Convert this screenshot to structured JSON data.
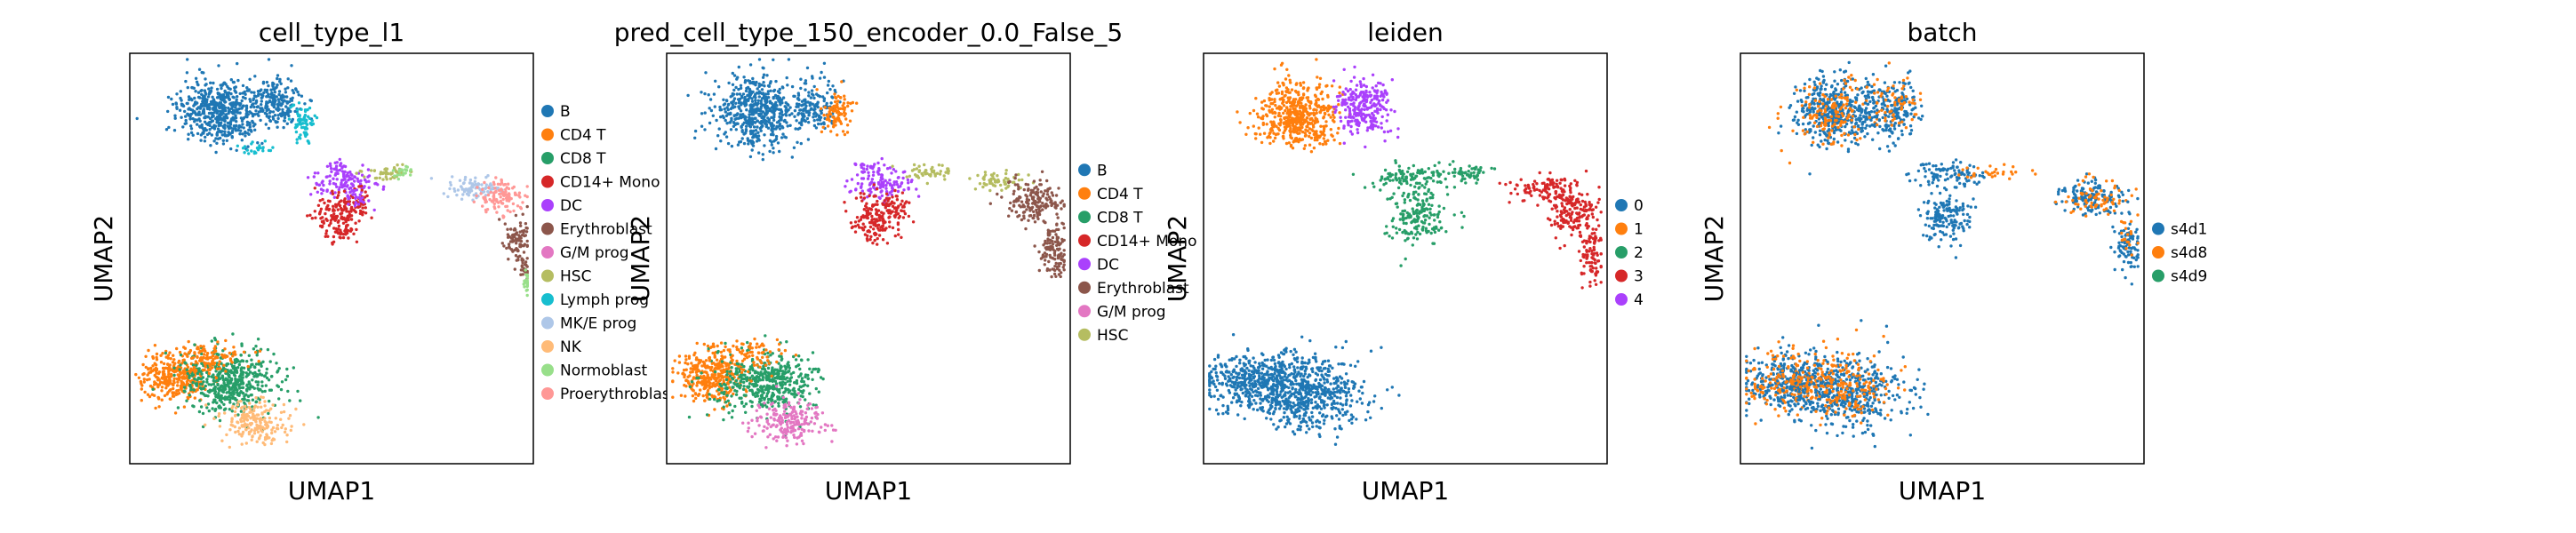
{
  "figure": {
    "xlabel": "UMAP1",
    "ylabel": "UMAP2"
  },
  "chart_data": [
    {
      "type": "scatter",
      "title": "cell_type_l1",
      "xlabel": "UMAP1",
      "ylabel": "UMAP2",
      "grid": false,
      "legend_position": "right",
      "categories": [
        {
          "name": "B",
          "color": "#1f77b4"
        },
        {
          "name": "CD4 T",
          "color": "#ff7f0e"
        },
        {
          "name": "CD8 T",
          "color": "#279e68"
        },
        {
          "name": "CD14+ Mono",
          "color": "#d62728"
        },
        {
          "name": "DC",
          "color": "#aa40fc"
        },
        {
          "name": "Erythroblast",
          "color": "#8c564b"
        },
        {
          "name": "G/M prog",
          "color": "#e377c2"
        },
        {
          "name": "HSC",
          "color": "#b5bd61"
        },
        {
          "name": "Lymph prog",
          "color": "#17becf"
        },
        {
          "name": "MK/E prog",
          "color": "#aec7e8"
        },
        {
          "name": "NK",
          "color": "#ffbb78"
        },
        {
          "name": "Normoblast",
          "color": "#98df8a"
        },
        {
          "name": "Proerythroblast",
          "color": "#ff9896"
        }
      ],
      "clusters": [
        {
          "category": "B",
          "x": 0.22,
          "y": 0.14,
          "sx": 0.05,
          "sy": 0.04,
          "n": 520
        },
        {
          "category": "B",
          "x": 0.36,
          "y": 0.12,
          "sx": 0.03,
          "sy": 0.03,
          "n": 200
        },
        {
          "category": "Lymph prog",
          "x": 0.43,
          "y": 0.17,
          "sx": 0.015,
          "sy": 0.02,
          "n": 70
        },
        {
          "category": "Lymph prog",
          "x": 0.31,
          "y": 0.23,
          "sx": 0.02,
          "sy": 0.01,
          "n": 25
        },
        {
          "category": "DC",
          "x": 0.51,
          "y": 0.28,
          "sx": 0.02,
          "sy": 0.012,
          "n": 30
        },
        {
          "category": "DC",
          "x": 0.54,
          "y": 0.32,
          "sx": 0.04,
          "sy": 0.018,
          "n": 110
        },
        {
          "category": "HSC",
          "x": 0.64,
          "y": 0.29,
          "sx": 0.025,
          "sy": 0.01,
          "n": 50
        },
        {
          "category": "Normoblast",
          "x": 0.68,
          "y": 0.29,
          "sx": 0.012,
          "sy": 0.008,
          "n": 20
        },
        {
          "category": "CD14+ Mono",
          "x": 0.52,
          "y": 0.4,
          "sx": 0.03,
          "sy": 0.03,
          "n": 160
        },
        {
          "category": "CD14+ Mono",
          "x": 0.57,
          "y": 0.37,
          "sx": 0.015,
          "sy": 0.02,
          "n": 40
        },
        {
          "category": "DC",
          "x": 0.56,
          "y": 0.355,
          "sx": 0.01,
          "sy": 0.01,
          "n": 20
        },
        {
          "category": "MK/E prog",
          "x": 0.86,
          "y": 0.33,
          "sx": 0.035,
          "sy": 0.012,
          "n": 90
        },
        {
          "category": "Proerythroblast",
          "x": 0.92,
          "y": 0.35,
          "sx": 0.03,
          "sy": 0.02,
          "n": 120
        },
        {
          "category": "Erythroblast",
          "x": 0.96,
          "y": 0.46,
          "sx": 0.015,
          "sy": 0.03,
          "n": 90
        },
        {
          "category": "Erythroblast",
          "x": 0.98,
          "y": 0.52,
          "sx": 0.008,
          "sy": 0.012,
          "n": 20
        },
        {
          "category": "Normoblast",
          "x": 0.99,
          "y": 0.56,
          "sx": 0.008,
          "sy": 0.012,
          "n": 35
        },
        {
          "category": "CD4 T",
          "x": 0.11,
          "y": 0.79,
          "sx": 0.04,
          "sy": 0.03,
          "n": 320
        },
        {
          "category": "CD8 T",
          "x": 0.25,
          "y": 0.8,
          "sx": 0.06,
          "sy": 0.04,
          "n": 500
        },
        {
          "category": "NK",
          "x": 0.31,
          "y": 0.9,
          "sx": 0.04,
          "sy": 0.025,
          "n": 200
        },
        {
          "category": "CD4 T",
          "x": 0.2,
          "y": 0.74,
          "sx": 0.05,
          "sy": 0.02,
          "n": 100
        }
      ]
    },
    {
      "type": "scatter",
      "title": "pred_cell_type_150_encoder_0.0_False_5",
      "xlabel": "UMAP1",
      "ylabel": "UMAP2",
      "grid": false,
      "legend_position": "right",
      "categories": [
        {
          "name": "B",
          "color": "#1f77b4"
        },
        {
          "name": "CD4 T",
          "color": "#ff7f0e"
        },
        {
          "name": "CD8 T",
          "color": "#279e68"
        },
        {
          "name": "CD14+ Mono",
          "color": "#d62728"
        },
        {
          "name": "DC",
          "color": "#aa40fc"
        },
        {
          "name": "Erythroblast",
          "color": "#8c564b"
        },
        {
          "name": "G/M prog",
          "color": "#e377c2"
        },
        {
          "name": "HSC",
          "color": "#b5bd61"
        }
      ],
      "clusters": [
        {
          "category": "B",
          "x": 0.22,
          "y": 0.14,
          "sx": 0.05,
          "sy": 0.04,
          "n": 520
        },
        {
          "category": "B",
          "x": 0.36,
          "y": 0.13,
          "sx": 0.03,
          "sy": 0.03,
          "n": 160
        },
        {
          "category": "CD4 T",
          "x": 0.42,
          "y": 0.15,
          "sx": 0.02,
          "sy": 0.025,
          "n": 90
        },
        {
          "category": "DC",
          "x": 0.51,
          "y": 0.28,
          "sx": 0.02,
          "sy": 0.012,
          "n": 30
        },
        {
          "category": "DC",
          "x": 0.54,
          "y": 0.32,
          "sx": 0.04,
          "sy": 0.018,
          "n": 110
        },
        {
          "category": "HSC",
          "x": 0.65,
          "y": 0.29,
          "sx": 0.025,
          "sy": 0.01,
          "n": 50
        },
        {
          "category": "CD14+ Mono",
          "x": 0.52,
          "y": 0.4,
          "sx": 0.03,
          "sy": 0.03,
          "n": 160
        },
        {
          "category": "CD14+ Mono",
          "x": 0.57,
          "y": 0.37,
          "sx": 0.015,
          "sy": 0.02,
          "n": 40
        },
        {
          "category": "HSC",
          "x": 0.82,
          "y": 0.31,
          "sx": 0.03,
          "sy": 0.01,
          "n": 60
        },
        {
          "category": "Erythroblast",
          "x": 0.91,
          "y": 0.36,
          "sx": 0.035,
          "sy": 0.025,
          "n": 170
        },
        {
          "category": "Erythroblast",
          "x": 0.96,
          "y": 0.48,
          "sx": 0.018,
          "sy": 0.035,
          "n": 120
        },
        {
          "category": "CD4 T",
          "x": 0.11,
          "y": 0.79,
          "sx": 0.04,
          "sy": 0.03,
          "n": 340
        },
        {
          "category": "CD8 T",
          "x": 0.25,
          "y": 0.8,
          "sx": 0.06,
          "sy": 0.04,
          "n": 480
        },
        {
          "category": "G/M prog",
          "x": 0.3,
          "y": 0.9,
          "sx": 0.04,
          "sy": 0.025,
          "n": 200
        },
        {
          "category": "CD4 T",
          "x": 0.2,
          "y": 0.74,
          "sx": 0.05,
          "sy": 0.02,
          "n": 80
        }
      ]
    },
    {
      "type": "scatter",
      "title": "leiden",
      "xlabel": "UMAP1",
      "ylabel": "UMAP2",
      "grid": false,
      "legend_position": "right",
      "categories": [
        {
          "name": "0",
          "color": "#1f77b4"
        },
        {
          "name": "1",
          "color": "#ff7f0e"
        },
        {
          "name": "2",
          "color": "#279e68"
        },
        {
          "name": "3",
          "color": "#d62728"
        },
        {
          "name": "4",
          "color": "#aa40fc"
        }
      ],
      "clusters": [
        {
          "category": "1",
          "x": 0.23,
          "y": 0.15,
          "sx": 0.05,
          "sy": 0.04,
          "n": 520
        },
        {
          "category": "4",
          "x": 0.4,
          "y": 0.13,
          "sx": 0.035,
          "sy": 0.035,
          "n": 260
        },
        {
          "category": "2",
          "x": 0.52,
          "y": 0.3,
          "sx": 0.05,
          "sy": 0.015,
          "n": 110
        },
        {
          "category": "2",
          "x": 0.66,
          "y": 0.29,
          "sx": 0.025,
          "sy": 0.01,
          "n": 50
        },
        {
          "category": "2",
          "x": 0.53,
          "y": 0.4,
          "sx": 0.035,
          "sy": 0.035,
          "n": 180
        },
        {
          "category": "3",
          "x": 0.84,
          "y": 0.33,
          "sx": 0.04,
          "sy": 0.015,
          "n": 100
        },
        {
          "category": "3",
          "x": 0.92,
          "y": 0.38,
          "sx": 0.03,
          "sy": 0.03,
          "n": 170
        },
        {
          "category": "3",
          "x": 0.96,
          "y": 0.49,
          "sx": 0.015,
          "sy": 0.035,
          "n": 90
        },
        {
          "category": "0",
          "x": 0.13,
          "y": 0.8,
          "sx": 0.06,
          "sy": 0.035,
          "n": 450
        },
        {
          "category": "0",
          "x": 0.27,
          "y": 0.83,
          "sx": 0.07,
          "sy": 0.045,
          "n": 550
        }
      ]
    },
    {
      "type": "scatter",
      "title": "batch",
      "xlabel": "UMAP1",
      "ylabel": "UMAP2",
      "grid": false,
      "legend_position": "right",
      "categories": [
        {
          "name": "s4d1",
          "color": "#1f77b4"
        },
        {
          "name": "s4d8",
          "color": "#ff7f0e"
        },
        {
          "name": "s4d9",
          "color": "#279e68"
        }
      ],
      "clusters": [
        {
          "category": "s4d1",
          "x": 0.23,
          "y": 0.14,
          "sx": 0.05,
          "sy": 0.04,
          "n": 440
        },
        {
          "category": "s4d8",
          "x": 0.23,
          "y": 0.14,
          "sx": 0.05,
          "sy": 0.04,
          "n": 140
        },
        {
          "category": "s4d1",
          "x": 0.38,
          "y": 0.13,
          "sx": 0.035,
          "sy": 0.035,
          "n": 200
        },
        {
          "category": "s4d8",
          "x": 0.38,
          "y": 0.13,
          "sx": 0.035,
          "sy": 0.035,
          "n": 60
        },
        {
          "category": "s4d1",
          "x": 0.52,
          "y": 0.3,
          "sx": 0.05,
          "sy": 0.015,
          "n": 100
        },
        {
          "category": "s4d8",
          "x": 0.62,
          "y": 0.29,
          "sx": 0.04,
          "sy": 0.01,
          "n": 30
        },
        {
          "category": "s4d1",
          "x": 0.51,
          "y": 0.4,
          "sx": 0.03,
          "sy": 0.03,
          "n": 150
        },
        {
          "category": "s4d1",
          "x": 0.87,
          "y": 0.35,
          "sx": 0.04,
          "sy": 0.02,
          "n": 150
        },
        {
          "category": "s4d8",
          "x": 0.88,
          "y": 0.35,
          "sx": 0.04,
          "sy": 0.02,
          "n": 70
        },
        {
          "category": "s4d1",
          "x": 0.96,
          "y": 0.47,
          "sx": 0.015,
          "sy": 0.035,
          "n": 90
        },
        {
          "category": "s4d8",
          "x": 0.96,
          "y": 0.45,
          "sx": 0.015,
          "sy": 0.03,
          "n": 20
        },
        {
          "category": "s4d1",
          "x": 0.13,
          "y": 0.8,
          "sx": 0.06,
          "sy": 0.035,
          "n": 330
        },
        {
          "category": "s4d8",
          "x": 0.13,
          "y": 0.8,
          "sx": 0.06,
          "sy": 0.035,
          "n": 170
        },
        {
          "category": "s4d1",
          "x": 0.27,
          "y": 0.83,
          "sx": 0.07,
          "sy": 0.045,
          "n": 420
        },
        {
          "category": "s4d8",
          "x": 0.26,
          "y": 0.81,
          "sx": 0.06,
          "sy": 0.04,
          "n": 180
        }
      ]
    }
  ]
}
